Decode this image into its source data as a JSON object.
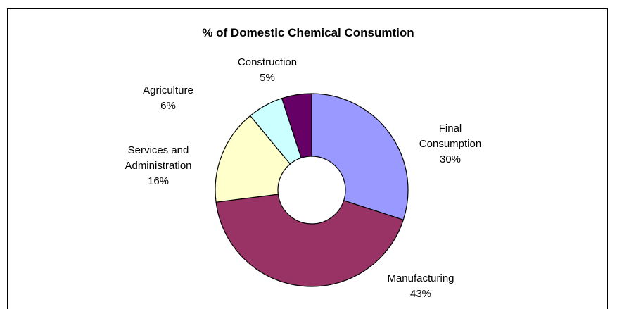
{
  "chart_data": {
    "type": "pie",
    "title": "% of Domestic Chemical Consumtion",
    "categories": [
      "Final Consumption",
      "Manufacturing",
      "Services and Administration",
      "Agriculture",
      "Construction"
    ],
    "values": [
      30,
      43,
      16,
      6,
      5
    ],
    "value_labels": [
      "30%",
      "43%",
      "16%",
      "6%",
      "5%"
    ],
    "colors": [
      "#9999ff",
      "#993366",
      "#ffffcc",
      "#ccffff",
      "#660066"
    ],
    "donut": true
  }
}
